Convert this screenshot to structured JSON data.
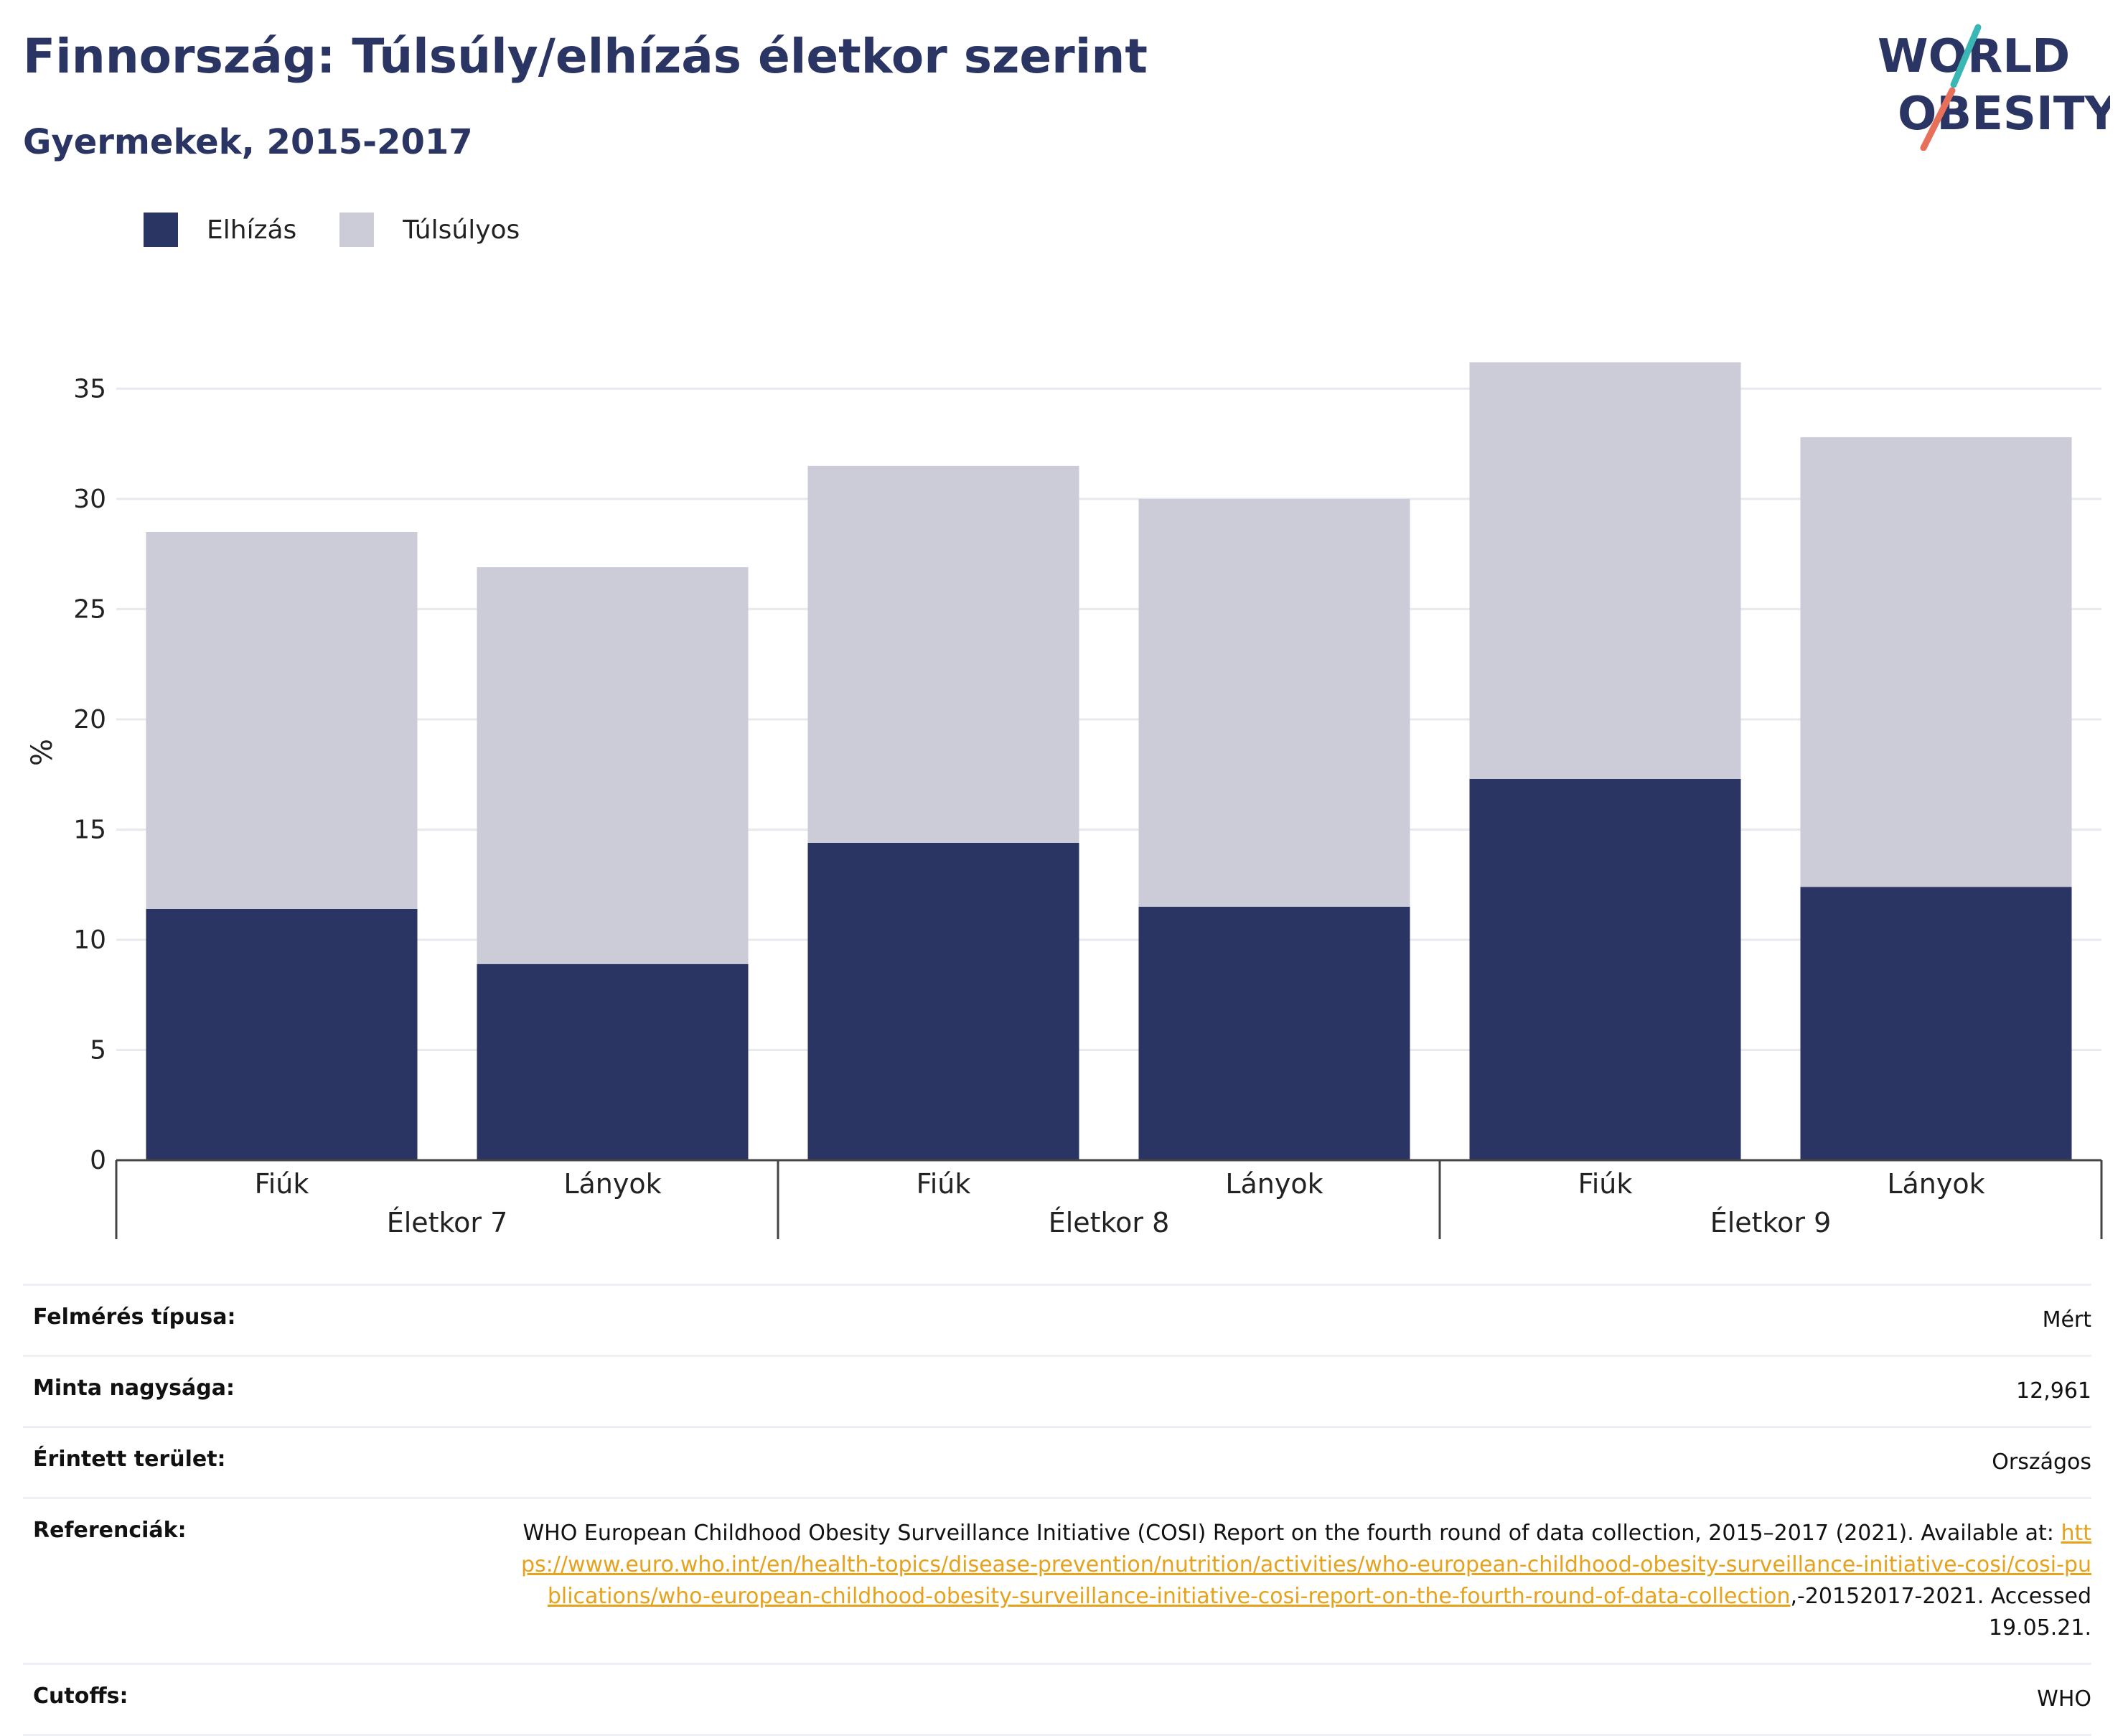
{
  "header": {
    "title": "Finnország: Túlsúly/elhízás életkor szerint",
    "subtitle": "Gyermekek, 2015-2017"
  },
  "logo": {
    "line1": "WORLD",
    "line2": "OBESITY"
  },
  "legend": [
    {
      "label": "Elhízás",
      "color": "#2a3563"
    },
    {
      "label": "Túlsúlyos",
      "color": "#cbccd8"
    }
  ],
  "chart_data": {
    "type": "bar",
    "stacked": true,
    "ylabel": "%",
    "ylim": [
      0,
      37
    ],
    "yticks": [
      0,
      5,
      10,
      15,
      20,
      25,
      30,
      35
    ],
    "grid": true,
    "legend_position": "top-left",
    "groups": [
      {
        "label": "Életkor 7",
        "categories": [
          "Fiúk",
          "Lányok"
        ]
      },
      {
        "label": "Életkor 8",
        "categories": [
          "Fiúk",
          "Lányok"
        ]
      },
      {
        "label": "Életkor 9",
        "categories": [
          "Fiúk",
          "Lányok"
        ]
      }
    ],
    "categories": [
      "Fiúk",
      "Lányok",
      "Fiúk",
      "Lányok",
      "Fiúk",
      "Lányok"
    ],
    "series": [
      {
        "name": "Elhízás",
        "color": "#2a3563",
        "values": [
          11.4,
          8.9,
          14.4,
          11.5,
          17.3,
          12.4
        ]
      },
      {
        "name": "Túlsúlyos",
        "color": "#cbccd8",
        "values": [
          17.1,
          18.0,
          17.1,
          18.5,
          18.9,
          20.4
        ]
      }
    ]
  },
  "info": [
    {
      "label": "Felmérés típusa:",
      "value": "Mért"
    },
    {
      "label": "Minta nagysága:",
      "value": "12,961"
    },
    {
      "label": "Érintett terület:",
      "value": "Országos"
    },
    {
      "label": "Referenciák:",
      "value_before": "WHO European Childhood Obesity Surveillance Initiative (COSI) Report on the fourth round of data collection, 2015–2017 (2021). Available at: ",
      "link": "https://www.euro.who.int/en/health-topics/disease-prevention/nutrition/activities/who-european-childhood-obesity-surveillance-initiative-cosi/cosi-publications/who-european-childhood-obesity-surveillance-initiative-cosi-report-on-the-fourth-round-of-data-collection",
      "value_after": ",-20152017-2021. Accessed 19.05.21."
    },
    {
      "label": "Cutoffs:",
      "value": "WHO"
    }
  ]
}
